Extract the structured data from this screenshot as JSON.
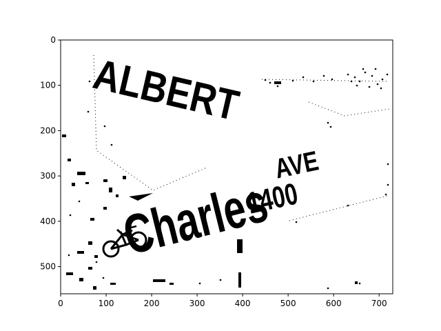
{
  "figure": {
    "x_ticks": [
      "0",
      "100",
      "200",
      "300",
      "400",
      "500",
      "600",
      "700"
    ],
    "y_ticks": [
      "0",
      "100",
      "200",
      "300",
      "400",
      "500"
    ],
    "x_range": [
      0,
      730
    ],
    "y_range": [
      0,
      560
    ],
    "grid": false
  },
  "image": {
    "description_colors": {
      "foreground": "#000000",
      "background": "#ffffff"
    },
    "sign_top_text": "ALBERT",
    "sign_main_text": "Charles",
    "sign_suffix_text": "AVE",
    "sign_number_text": "1400",
    "icon": "bicycle-icon"
  }
}
